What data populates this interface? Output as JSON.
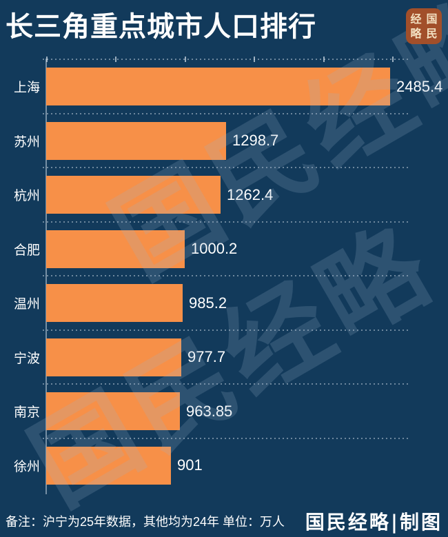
{
  "header": {
    "title": "长三角重点城市人口排行",
    "logo_chars": [
      "经",
      "国",
      "略",
      "民"
    ],
    "logo_name": "国民经略"
  },
  "watermark": {
    "text": "国民经略"
  },
  "chart_data": {
    "type": "bar",
    "orientation": "horizontal",
    "title": "长三角重点城市人口排行",
    "categories": [
      "上海",
      "苏州",
      "杭州",
      "合肥",
      "温州",
      "宁波",
      "南京",
      "徐州"
    ],
    "values": [
      2485.4,
      1298.7,
      1262.4,
      1000.2,
      985.2,
      977.7,
      963.85,
      901
    ],
    "value_labels": [
      "2485.4",
      "1298.7",
      "1262.4",
      "1000.2",
      "985.2",
      "977.7",
      "963.85",
      "901"
    ],
    "unit": "万人",
    "xlim": [
      0,
      2500
    ],
    "tick_step": 500,
    "bar_color": "#f79048",
    "grid": "dotted-row-separators",
    "legend": "none",
    "xlabel": "",
    "ylabel": ""
  },
  "footer": {
    "note": "备注：沪宁为25年数据，其他均为24年 单位：万人",
    "credit": "国民经略|制图"
  },
  "colors": {
    "background": "#123a5b",
    "bar": "#f79048",
    "text": "#ffffff",
    "logo_background": "#a24f2a",
    "logo_text": "#f3e2c3",
    "watermark": "rgba(154,182,205,0.20)",
    "gridline": "rgba(201,214,224,0.5)"
  }
}
